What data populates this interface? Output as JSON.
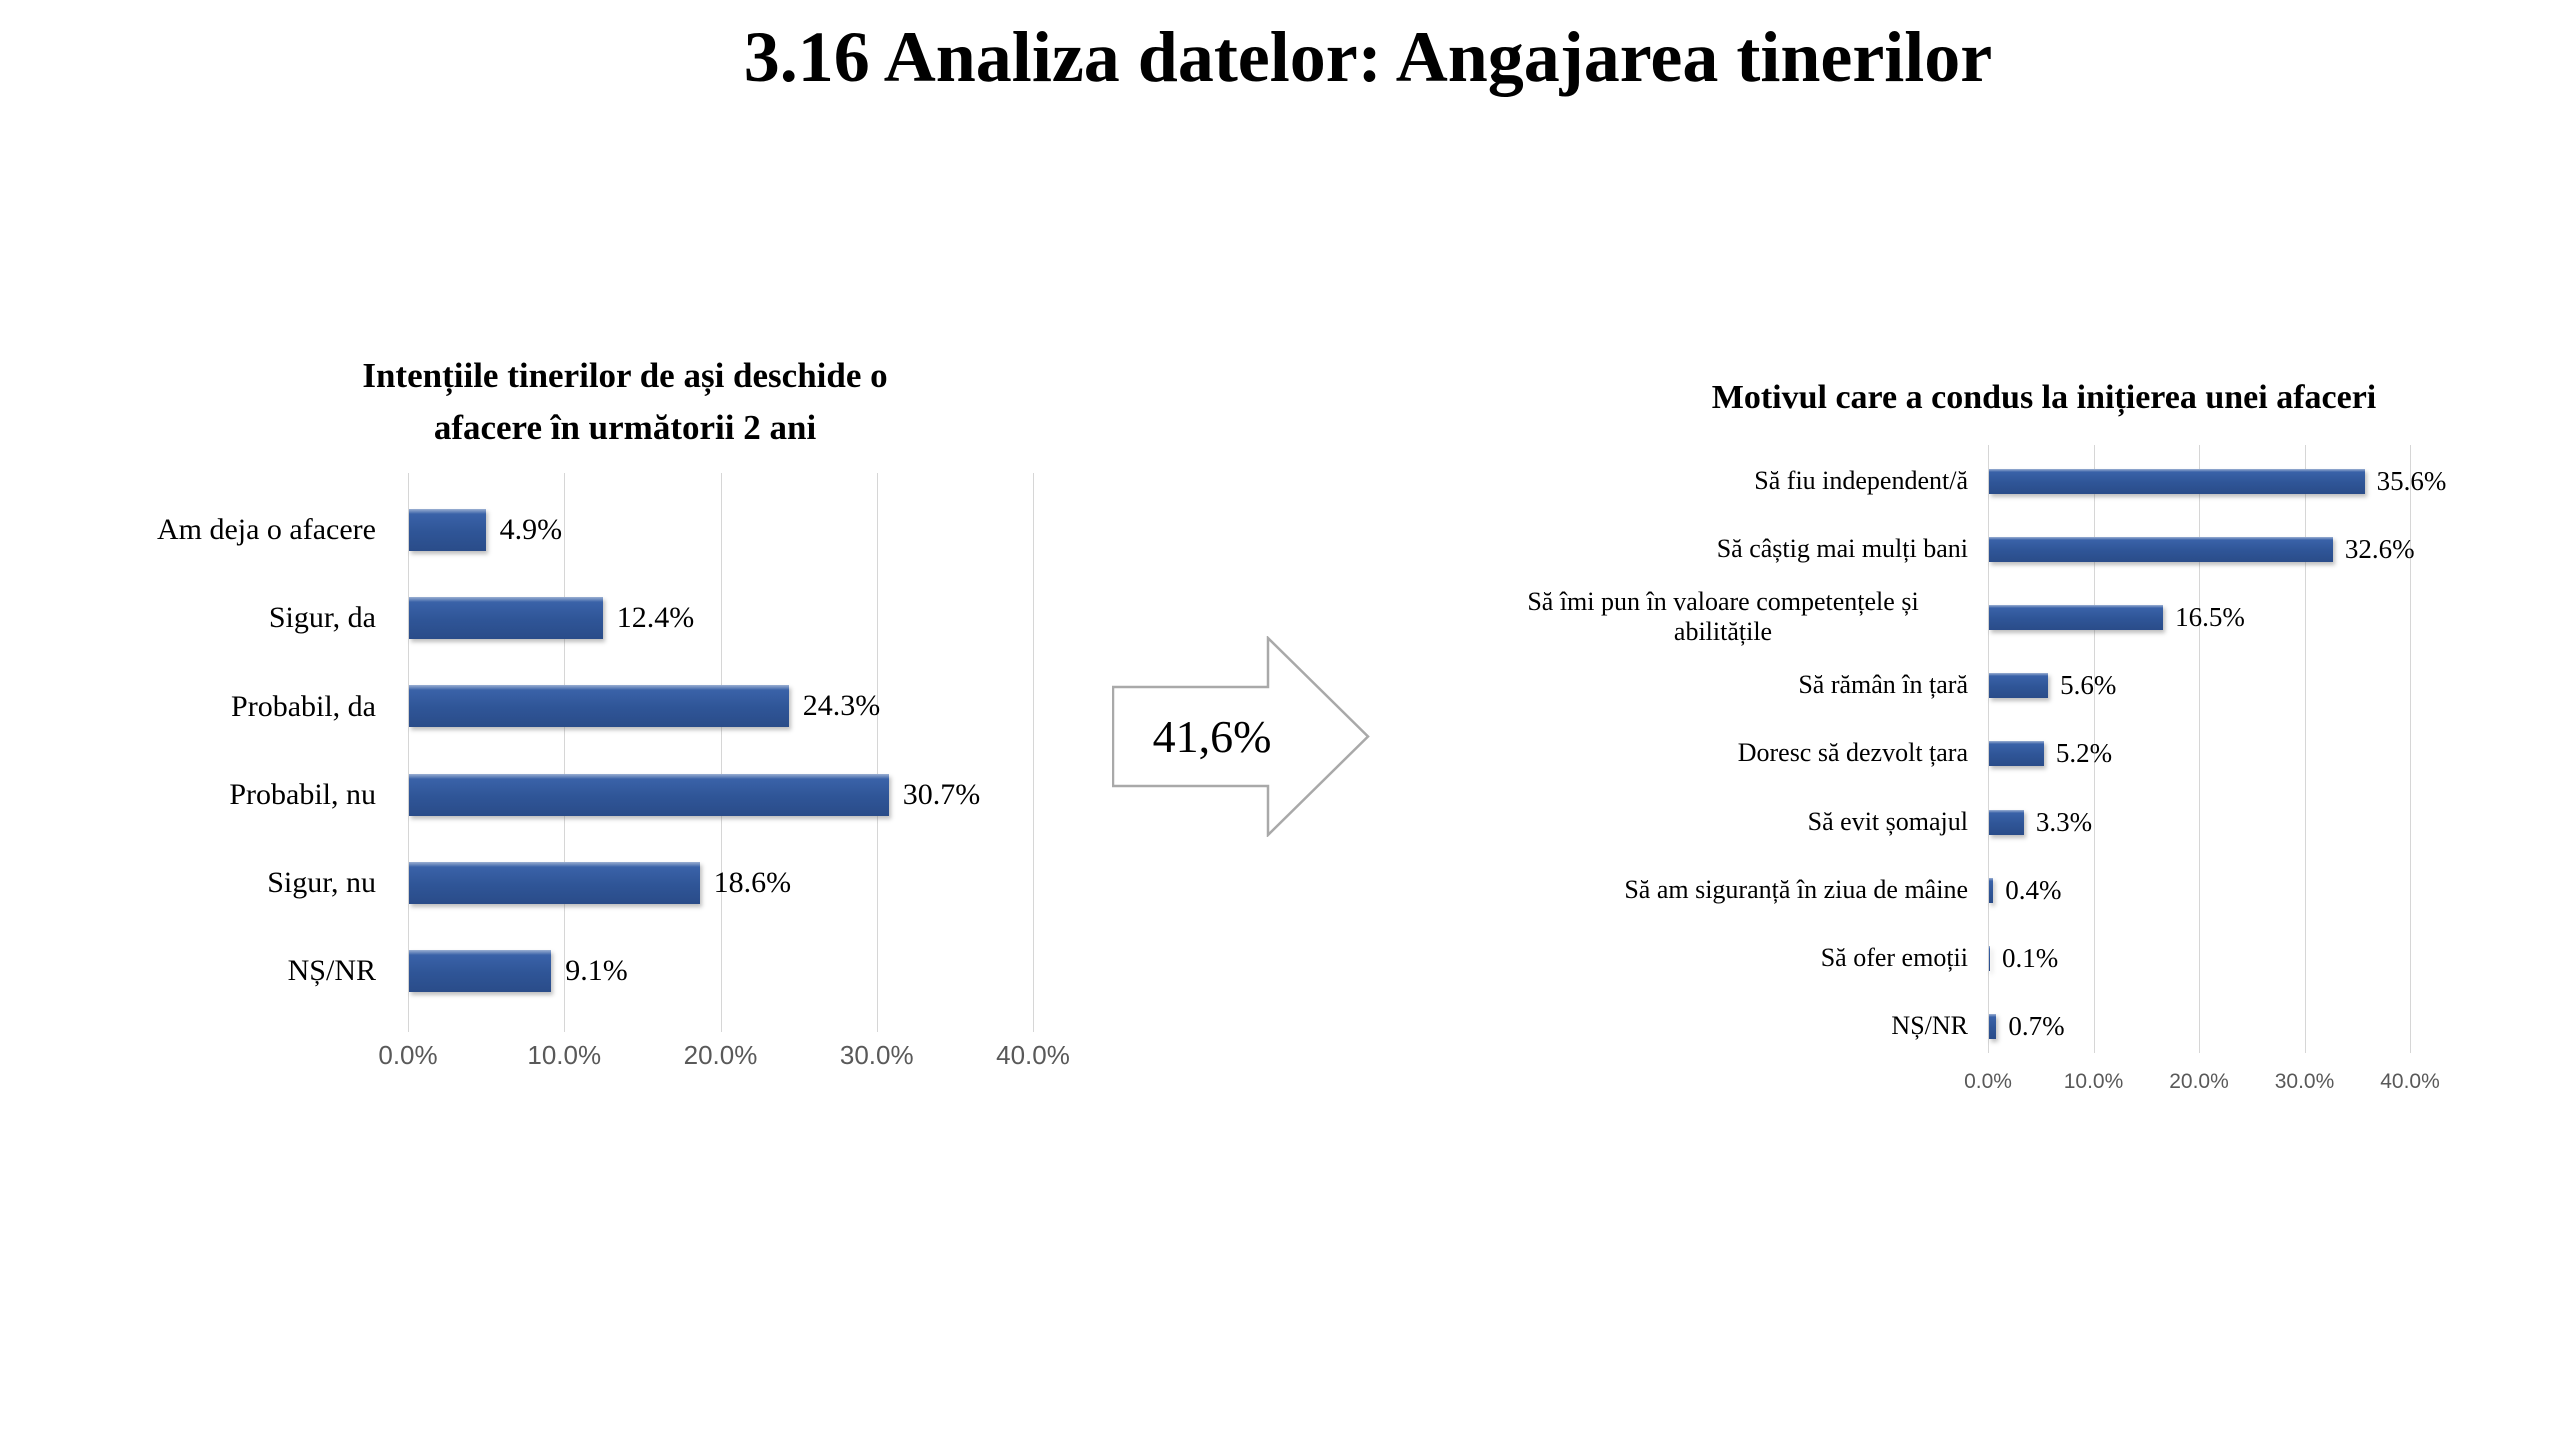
{
  "slide": {
    "title": "3.16 Analiza datelor: Angajarea tinerilor",
    "background": "#FFFFFF"
  },
  "arrow": {
    "label": "41,6%"
  },
  "style": {
    "bar_color": "#2F5597",
    "bar_gradient_top": "#3A62A8",
    "bar_gradient_bottom": "#2A4C89",
    "gridline_color": "#D6D6D6",
    "axis_text_color": "#595959",
    "label_text_color": "#000000",
    "arrow_border_color": "#A9A9A9",
    "arrow_fill_color": "#FFFFFF"
  },
  "chart_data": [
    {
      "type": "bar",
      "orientation": "horizontal",
      "title": "Intențiile tinerilor de ași deschide o afacere în următorii 2 ani",
      "title_lines": [
        "Intențiile tinerilor de ași deschide o",
        "afacere în următorii 2 ani"
      ],
      "categories": [
        "Am deja o afacere",
        "Sigur, da",
        "Probabil, da",
        "Probabil, nu",
        "Sigur, nu",
        "NȘ/NR"
      ],
      "values": [
        4.9,
        12.4,
        24.3,
        30.7,
        18.6,
        9.1
      ],
      "value_labels": [
        "4.9%",
        "12.4%",
        "24.3%",
        "30.7%",
        "18.6%",
        "9.1%"
      ],
      "x_ticks": [
        "0.0%",
        "10.0%",
        "20.0%",
        "30.0%",
        "40.0%"
      ],
      "x_tick_values": [
        0,
        10,
        20,
        30,
        40
      ],
      "xlim": [
        0,
        40
      ],
      "grid": true,
      "legend": false
    },
    {
      "type": "bar",
      "orientation": "horizontal",
      "title": "Motivul care a condus la inițierea unei afaceri",
      "categories": [
        "Să fiu independent/ă",
        "Să câștig mai mulți bani",
        "Să îmi pun în valoare competențele și abilitățile",
        "Să rămân în țară",
        "Doresc să dezvolt țara",
        "Să evit șomajul",
        "Să am siguranță în ziua de mâine",
        "Să ofer emoții",
        "NȘ/NR"
      ],
      "values": [
        35.6,
        32.6,
        16.5,
        5.6,
        5.2,
        3.3,
        0.4,
        0.1,
        0.7
      ],
      "value_labels": [
        "35.6%",
        "32.6%",
        "16.5%",
        "5.6%",
        "5.2%",
        "3.3%",
        "0.4%",
        "0.1%",
        "0.7%"
      ],
      "x_ticks": [
        "0.0%",
        "10.0%",
        "20.0%",
        "30.0%",
        "40.0%"
      ],
      "x_tick_values": [
        0,
        10,
        20,
        30,
        40
      ],
      "xlim": [
        0,
        40
      ],
      "grid": true,
      "legend": false
    }
  ]
}
